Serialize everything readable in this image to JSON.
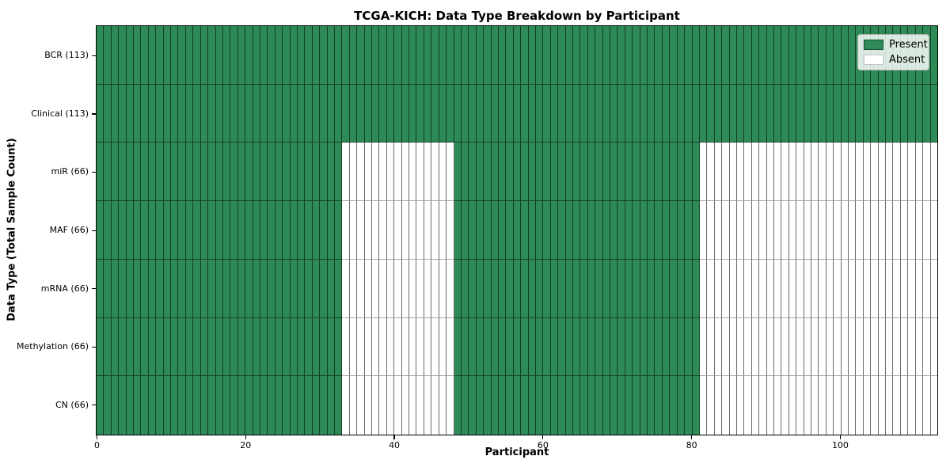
{
  "chart_data": {
    "type": "heatmap",
    "title": "TCGA-KICH: Data Type Breakdown by Participant",
    "xlabel": "Participant",
    "ylabel": "Data Type (Total Sample Count)",
    "x_ticks": [
      0,
      20,
      40,
      60,
      80,
      100
    ],
    "x_range": [
      0,
      113
    ],
    "n_participants": 113,
    "grid": "cell-borders",
    "colors": {
      "present": "#2e8b57",
      "absent": "#ffffff"
    },
    "legend": {
      "position": "upper-right",
      "items": [
        {
          "label": "Present",
          "color": "#2e8b57"
        },
        {
          "label": "Absent",
          "color": "#ffffff"
        }
      ]
    },
    "rows": [
      {
        "label": "BCR (113)",
        "data_type": "BCR",
        "total_samples": 113,
        "present_segments": [
          [
            0,
            113
          ]
        ]
      },
      {
        "label": "Clinical (113)",
        "data_type": "Clinical",
        "total_samples": 113,
        "present_segments": [
          [
            0,
            113
          ]
        ]
      },
      {
        "label": "miR (66)",
        "data_type": "miR",
        "total_samples": 66,
        "present_segments": [
          [
            0,
            33
          ],
          [
            48,
            81
          ]
        ]
      },
      {
        "label": "MAF (66)",
        "data_type": "MAF",
        "total_samples": 66,
        "present_segments": [
          [
            0,
            33
          ],
          [
            48,
            81
          ]
        ]
      },
      {
        "label": "mRNA (66)",
        "data_type": "mRNA",
        "total_samples": 66,
        "present_segments": [
          [
            0,
            33
          ],
          [
            48,
            81
          ]
        ]
      },
      {
        "label": "Methylation (66)",
        "data_type": "Methylation",
        "total_samples": 66,
        "present_segments": [
          [
            0,
            33
          ],
          [
            48,
            81
          ]
        ]
      },
      {
        "label": "CN (66)",
        "data_type": "CN",
        "total_samples": 66,
        "present_segments": [
          [
            0,
            33
          ],
          [
            48,
            81
          ]
        ]
      }
    ]
  }
}
